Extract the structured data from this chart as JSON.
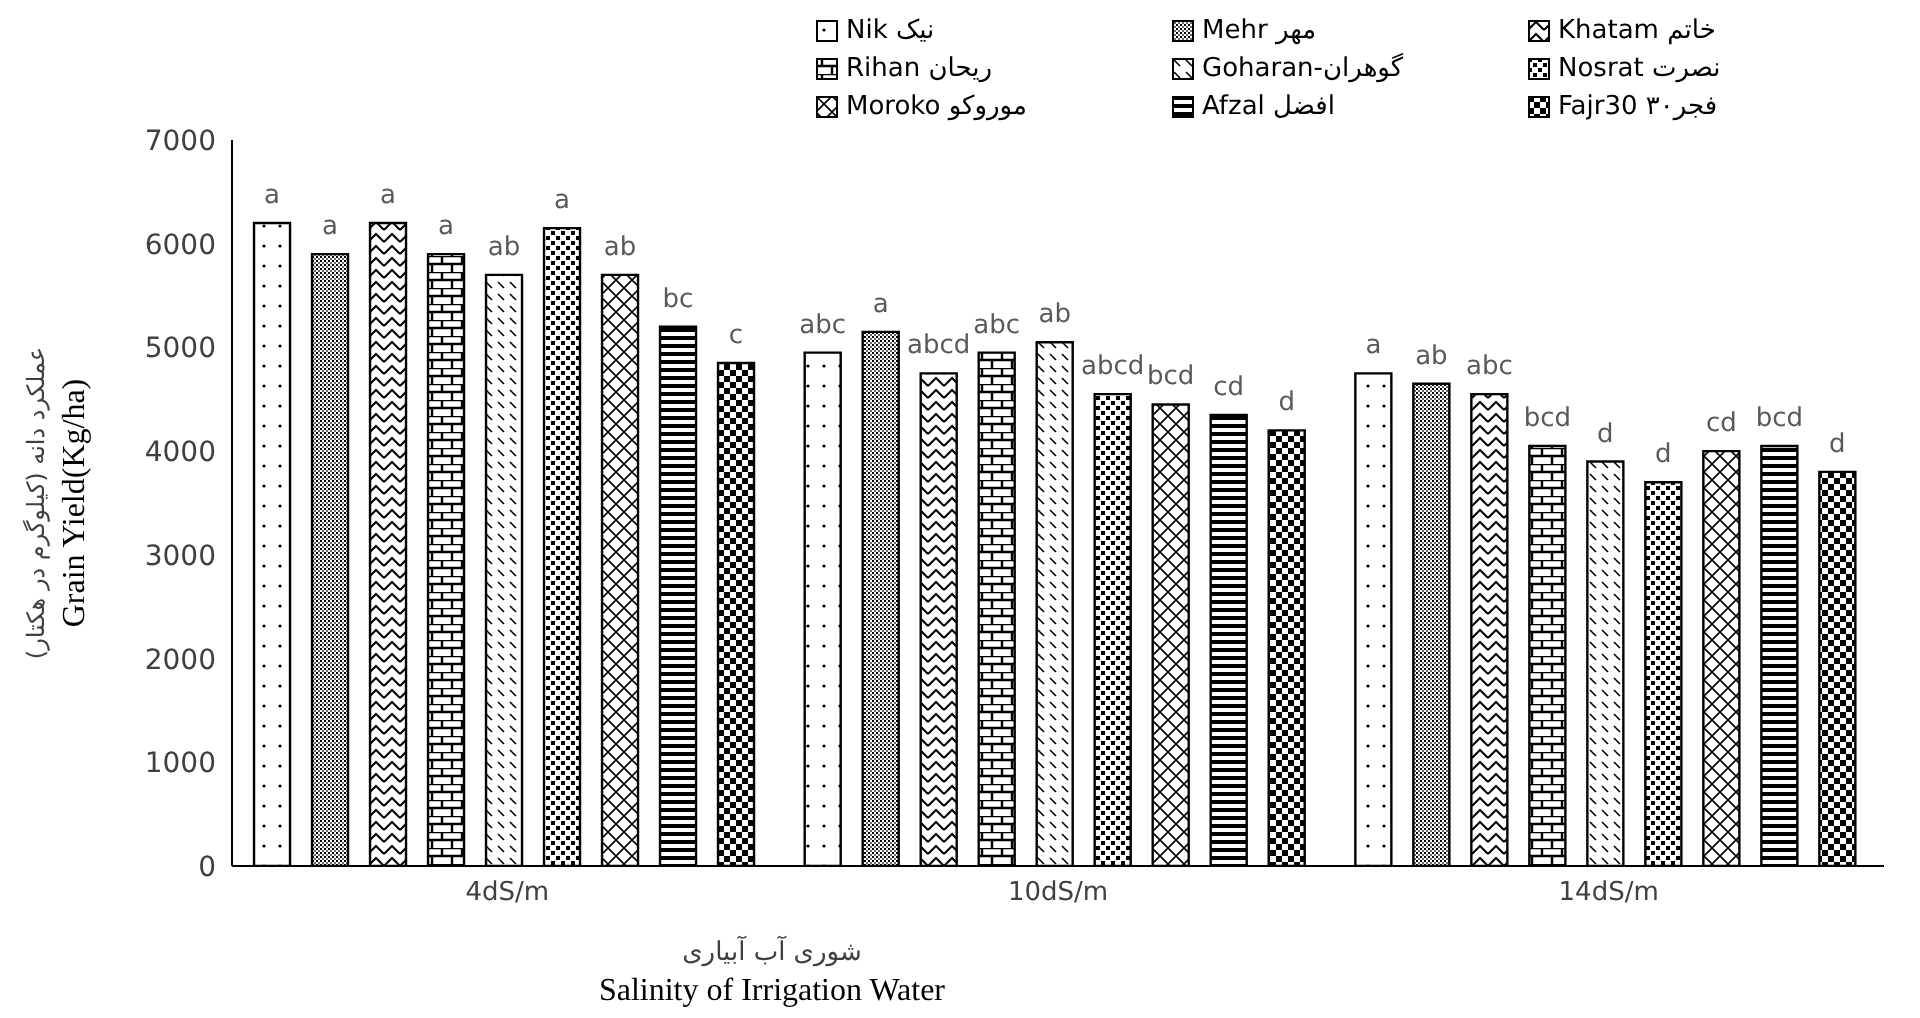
{
  "chart_data": {
    "type": "bar",
    "xlabel": "شوری آب آبیاری\nSalinity of Irrigation Water",
    "ylabel": "عملکرد دانه (کیلوگرم در هکتار)\nGrain Yield(Kg/ha)",
    "categories": [
      "4dS/m",
      "10dS/m",
      "14dS/m"
    ],
    "ylim": [
      0,
      7000
    ],
    "yticks": [
      0,
      1000,
      2000,
      3000,
      4000,
      5000,
      6000,
      7000
    ],
    "grid": false,
    "legend": "top right",
    "series": [
      {
        "name": "Nik نیک",
        "color": "#000000",
        "values": [
          6200,
          4950,
          4750
        ],
        "value_labels": [
          "a",
          "abc",
          "a"
        ]
      },
      {
        "name": "Mehr مهر",
        "color": "#000000",
        "values": [
          5900,
          5150,
          4650
        ],
        "value_labels": [
          "a",
          "a",
          "ab"
        ]
      },
      {
        "name": "Khatam خاتم",
        "color": "#000000",
        "values": [
          6200,
          4750,
          4550
        ],
        "value_labels": [
          "a",
          "abcd",
          "abc"
        ]
      },
      {
        "name": "Rihan ریحان",
        "color": "#000000",
        "values": [
          5900,
          4950,
          4050
        ],
        "value_labels": [
          "a",
          "abc",
          "bcd"
        ]
      },
      {
        "name": "Goharan-گوهران",
        "color": "#000000",
        "values": [
          5700,
          5050,
          3900
        ],
        "value_labels": [
          "ab",
          "ab",
          "d"
        ]
      },
      {
        "name": "Nosrat نصرت",
        "color": "#000000",
        "values": [
          6150,
          4550,
          3700
        ],
        "value_labels": [
          "a",
          "abcd",
          "d"
        ]
      },
      {
        "name": "Moroko موروکو",
        "color": "#000000",
        "values": [
          5700,
          4450,
          4000
        ],
        "value_labels": [
          "ab",
          "bcd",
          "cd"
        ]
      },
      {
        "name": "Afzal افضل",
        "color": "#000000",
        "values": [
          5200,
          4350,
          4050
        ],
        "value_labels": [
          "bc",
          "cd",
          "bcd"
        ]
      },
      {
        "name": "Fajr30 فجر۳۰",
        "color": "#000000",
        "values": [
          4850,
          4200,
          3800
        ],
        "value_labels": [
          "c",
          "d",
          "d"
        ]
      }
    ]
  }
}
